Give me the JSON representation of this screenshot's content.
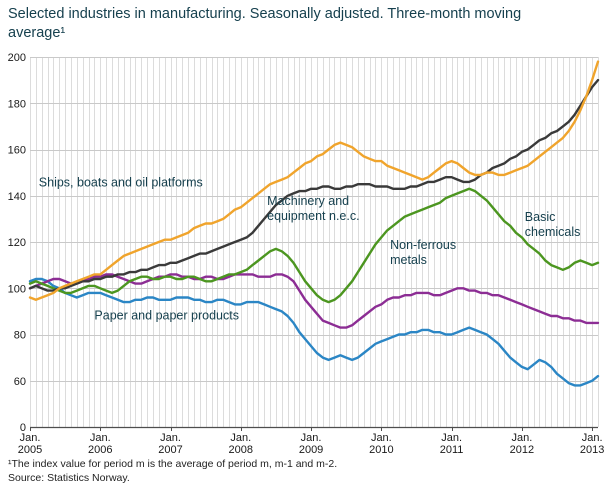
{
  "title": "Selected industries in manufacturing. Seasonally adjusted. Three-month moving average¹",
  "footnote": "¹The index value for period m is the average of period m, m-1 and m-2.",
  "source": "Source: Statistics Norway.",
  "chart_data": {
    "type": "line",
    "title": "Selected industries in manufacturing. Seasonally adjusted. Three-month moving average",
    "x_unit": "month",
    "x_start": "2005-01",
    "x_end": "2013-02",
    "grid": "on",
    "legend_position": "inline-labels",
    "y_ticks": [
      0,
      60,
      80,
      100,
      120,
      140,
      160,
      180,
      200
    ],
    "y_axis_break_below": 60,
    "x_ticks": [
      {
        "month_label": "Jan.",
        "year": "2005"
      },
      {
        "month_label": "Jan.",
        "year": "2006"
      },
      {
        "month_label": "Jan.",
        "year": "2007"
      },
      {
        "month_label": "Jan.",
        "year": "2008"
      },
      {
        "month_label": "Jan.",
        "year": "2009"
      },
      {
        "month_label": "Jan.",
        "year": "2010"
      },
      {
        "month_label": "Jan.",
        "year": "2011"
      },
      {
        "month_label": "Jan.",
        "year": "2012"
      },
      {
        "month_label": "Jan.",
        "year": "2013"
      }
    ],
    "series": [
      {
        "name": "Ships, boats and oil platforms",
        "color": "#f0a42c",
        "z": 5,
        "values": [
          96,
          95,
          96,
          97,
          98,
          100,
          101,
          102,
          103,
          104,
          105,
          106,
          106,
          108,
          110,
          112,
          114,
          115,
          116,
          117,
          118,
          119,
          120,
          121,
          121,
          122,
          123,
          124,
          126,
          127,
          128,
          128,
          129,
          130,
          132,
          134,
          135,
          137,
          139,
          141,
          143,
          145,
          146,
          147,
          148,
          150,
          152,
          154,
          155,
          157,
          158,
          160,
          162,
          163,
          162,
          161,
          159,
          157,
          156,
          155,
          155,
          153,
          152,
          151,
          150,
          149,
          148,
          147,
          148,
          150,
          152,
          154,
          155,
          154,
          152,
          150,
          149,
          149,
          150,
          150,
          149,
          149,
          150,
          151,
          152,
          153,
          155,
          157,
          159,
          161,
          163,
          165,
          168,
          172,
          177,
          183,
          190,
          198
        ]
      },
      {
        "name": "Machinery and equipment n.e.c.",
        "color": "#3a3a3a",
        "z": 4,
        "values": [
          100,
          101,
          100,
          99,
          99,
          100,
          100,
          101,
          102,
          103,
          103,
          104,
          104,
          105,
          105,
          106,
          106,
          107,
          107,
          108,
          108,
          109,
          110,
          110,
          111,
          111,
          112,
          113,
          114,
          115,
          115,
          116,
          117,
          118,
          119,
          120,
          121,
          122,
          124,
          127,
          130,
          133,
          136,
          138,
          140,
          141,
          142,
          142,
          143,
          143,
          144,
          144,
          143,
          143,
          144,
          144,
          145,
          145,
          145,
          144,
          144,
          144,
          143,
          143,
          143,
          144,
          144,
          145,
          146,
          146,
          147,
          148,
          148,
          147,
          146,
          146,
          147,
          149,
          150,
          152,
          153,
          154,
          156,
          157,
          159,
          160,
          162,
          164,
          165,
          167,
          168,
          170,
          172,
          175,
          179,
          183,
          187,
          190
        ]
      },
      {
        "name": "Basic chemicals",
        "color": "#4c9620",
        "z": 3,
        "values": [
          102,
          103,
          102,
          101,
          100,
          99,
          98,
          98,
          99,
          100,
          101,
          101,
          100,
          99,
          98,
          99,
          101,
          103,
          104,
          105,
          105,
          104,
          104,
          105,
          105,
          104,
          104,
          105,
          105,
          104,
          103,
          103,
          104,
          105,
          106,
          106,
          107,
          108,
          110,
          112,
          114,
          116,
          117,
          116,
          114,
          111,
          107,
          103,
          100,
          97,
          95,
          94,
          95,
          97,
          100,
          103,
          107,
          111,
          115,
          119,
          122,
          125,
          127,
          129,
          131,
          132,
          133,
          134,
          135,
          136,
          137,
          139,
          140,
          141,
          142,
          143,
          142,
          140,
          138,
          135,
          132,
          129,
          127,
          124,
          122,
          119,
          117,
          115,
          112,
          110,
          109,
          108,
          109,
          111,
          112,
          111,
          110,
          111
        ]
      },
      {
        "name": "Non-ferrous metals",
        "color": "#8c2d94",
        "z": 2,
        "values": [
          100,
          101,
          102,
          103,
          104,
          104,
          103,
          102,
          102,
          103,
          104,
          105,
          105,
          106,
          106,
          105,
          104,
          103,
          102,
          102,
          103,
          104,
          105,
          105,
          106,
          106,
          105,
          105,
          104,
          104,
          105,
          105,
          104,
          104,
          105,
          106,
          106,
          106,
          106,
          105,
          105,
          105,
          106,
          106,
          105,
          103,
          99,
          95,
          92,
          89,
          86,
          85,
          84,
          83,
          83,
          84,
          86,
          88,
          90,
          92,
          93,
          95,
          96,
          96,
          97,
          97,
          98,
          98,
          98,
          97,
          97,
          98,
          99,
          100,
          100,
          99,
          99,
          98,
          98,
          97,
          97,
          96,
          95,
          94,
          93,
          92,
          91,
          90,
          89,
          88,
          88,
          87,
          87,
          86,
          86,
          85,
          85,
          85
        ]
      },
      {
        "name": "Paper and paper products",
        "color": "#2b86c5",
        "z": 1,
        "values": [
          103,
          104,
          104,
          103,
          101,
          100,
          98,
          97,
          96,
          97,
          98,
          98,
          98,
          97,
          96,
          95,
          94,
          94,
          95,
          95,
          96,
          96,
          95,
          95,
          95,
          96,
          96,
          96,
          95,
          95,
          94,
          94,
          95,
          95,
          94,
          93,
          93,
          94,
          94,
          94,
          93,
          92,
          91,
          90,
          88,
          85,
          81,
          78,
          75,
          72,
          70,
          69,
          70,
          71,
          70,
          69,
          70,
          72,
          74,
          76,
          77,
          78,
          79,
          80,
          80,
          81,
          81,
          82,
          82,
          81,
          81,
          80,
          80,
          81,
          82,
          83,
          82,
          81,
          80,
          78,
          76,
          73,
          70,
          68,
          66,
          65,
          67,
          69,
          68,
          66,
          63,
          61,
          59,
          58,
          58,
          59,
          60,
          62
        ]
      }
    ],
    "annotations": [
      {
        "lines": [
          "Ships, boats and oil platforms"
        ],
        "month": 1.5,
        "value": 144
      },
      {
        "lines": [
          "Machinery and",
          "equipment n.e.c."
        ],
        "month": 40.5,
        "value": 136
      },
      {
        "lines": [
          "Non-ferrous",
          "metals"
        ],
        "month": 61.5,
        "value": 117
      },
      {
        "lines": [
          "Basic",
          "chemicals"
        ],
        "month": 84.5,
        "value": 129
      },
      {
        "lines": [
          "Paper and paper products"
        ],
        "month": 11,
        "value": 86.5
      }
    ]
  }
}
